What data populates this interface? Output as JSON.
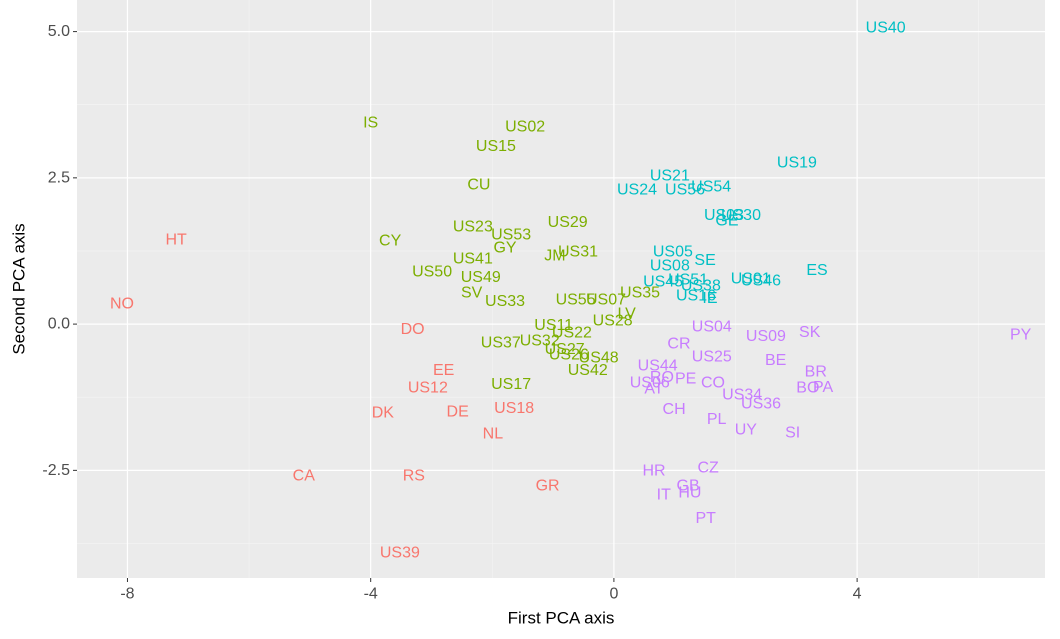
{
  "chart_data": {
    "type": "scatter",
    "x_label": "First PCA axis",
    "y_label": "Second PCA axis",
    "xlim": [
      -8.83,
      7.09
    ],
    "ylim": [
      -4.34,
      5.54
    ],
    "xticks": [
      -8,
      -4,
      0,
      4
    ],
    "yticks": [
      -2.5,
      {
        "value": 0,
        "label": "0.0"
      },
      2.5,
      {
        "value": 5,
        "label": "5.0"
      }
    ],
    "grid": true,
    "series": [
      {
        "color": "#F8766D",
        "labels": [
          "HT",
          "NO",
          "DO",
          "EE",
          "US12",
          "DK",
          "DE",
          "US18",
          "NL",
          "CA",
          "RS",
          "GR",
          "US39"
        ],
        "x": [
          -7.2,
          -8.09,
          -3.31,
          -2.8,
          -3.06,
          -3.8,
          -2.57,
          -1.64,
          -1.99,
          -5.1,
          -3.29,
          -1.09,
          -3.52
        ],
        "values": [
          1.44,
          0.34,
          -0.09,
          -0.79,
          -1.09,
          -1.52,
          -1.5,
          -1.44,
          -1.88,
          -2.6,
          -2.6,
          -2.77,
          -3.91
        ]
      },
      {
        "color": "#7CAE00",
        "labels": [
          "IS",
          "US02",
          "US15",
          "CU",
          "US23",
          "US53",
          "GY",
          "US29",
          "US31",
          "JM",
          "CY",
          "US41",
          "US50",
          "US49",
          "SV",
          "US33",
          "US55",
          "US07",
          "US35",
          "LV",
          "US28",
          "US11",
          "US32",
          "US22",
          "US27",
          "US37",
          "US26",
          "US48",
          "US42",
          "US17"
        ],
        "x": [
          -4.0,
          -1.46,
          -1.94,
          -2.22,
          -2.32,
          -1.69,
          -1.79,
          -0.76,
          -0.59,
          -0.97,
          -3.68,
          -2.32,
          -2.99,
          -2.19,
          -2.34,
          -1.79,
          -0.63,
          -0.13,
          0.43,
          0.21,
          -0.02,
          -0.99,
          -1.22,
          -0.69,
          -0.81,
          -1.86,
          -0.74,
          -0.25,
          -0.43,
          -1.69
        ],
        "values": [
          3.44,
          3.37,
          3.04,
          2.38,
          1.66,
          1.52,
          1.3,
          1.74,
          1.23,
          1.16,
          1.42,
          1.11,
          0.89,
          0.8,
          0.53,
          0.39,
          0.41,
          0.41,
          0.53,
          0.17,
          0.05,
          -0.02,
          -0.29,
          -0.15,
          -0.43,
          -0.32,
          -0.53,
          -0.58,
          -0.79,
          -1.03
        ]
      },
      {
        "color": "#00BFC4",
        "labels": [
          "US40",
          "US19",
          "US21",
          "US24",
          "US56",
          "US54",
          "US30",
          "US03",
          "GE",
          "US05",
          "SE",
          "US08",
          "US51",
          "US38",
          "US45",
          "US01",
          "US46",
          "ES",
          "US16",
          "IE"
        ],
        "x": [
          4.47,
          3.01,
          0.92,
          0.38,
          1.17,
          1.6,
          2.09,
          1.81,
          1.86,
          0.97,
          1.5,
          0.92,
          1.22,
          1.43,
          0.81,
          2.25,
          2.42,
          3.34,
          1.35,
          1.58
        ],
        "values": [
          5.06,
          2.75,
          2.53,
          2.29,
          2.29,
          2.34,
          1.86,
          1.86,
          1.76,
          1.23,
          1.09,
          0.99,
          0.75,
          0.65,
          0.72,
          0.77,
          0.74,
          0.92,
          0.48,
          0.44
        ]
      },
      {
        "color": "#C77CFF",
        "labels": [
          "PY",
          "US04",
          "SK",
          "US09",
          "CR",
          "BE",
          "US25",
          "US44",
          "BR",
          "RO",
          "PE",
          "CO",
          "US06",
          "AT",
          "BO",
          "PA",
          "US34",
          "US36",
          "CH",
          "PL",
          "UY",
          "SI",
          "HR",
          "CZ",
          "GB",
          "IT",
          "HU",
          "PT"
        ],
        "x": [
          6.69,
          1.61,
          3.22,
          2.5,
          1.07,
          2.66,
          1.61,
          0.72,
          3.32,
          0.79,
          1.18,
          1.63,
          0.59,
          0.66,
          3.19,
          3.44,
          2.11,
          2.42,
          0.99,
          1.69,
          2.17,
          2.94,
          0.66,
          1.55,
          1.22,
          0.82,
          1.25,
          1.51
        ],
        "values": [
          -0.19,
          -0.05,
          -0.14,
          -0.21,
          -0.34,
          -0.62,
          -0.56,
          -0.72,
          -0.82,
          -0.91,
          -0.94,
          -1.01,
          -1.01,
          -1.11,
          -1.09,
          -1.08,
          -1.21,
          -1.37,
          -1.46,
          -1.63,
          -1.81,
          -1.86,
          -2.51,
          -2.46,
          -2.77,
          -2.92,
          -2.89,
          -3.32
        ]
      }
    ]
  }
}
